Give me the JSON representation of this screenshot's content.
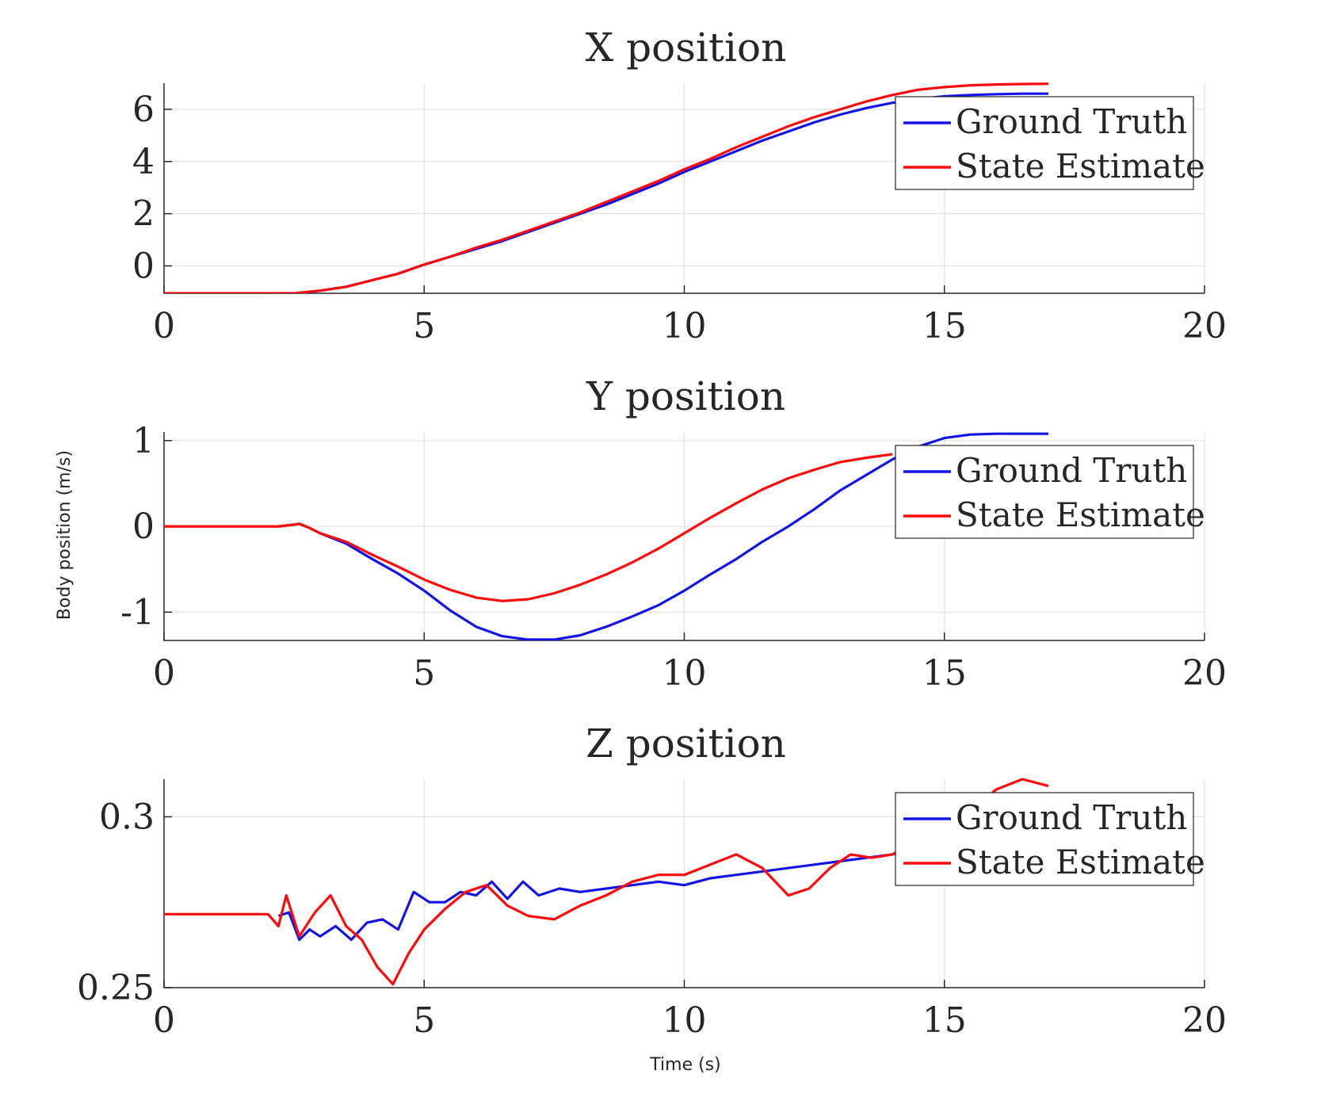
{
  "figure": {
    "ylabel": "Body position (m/s)",
    "xlabel": "Time (s)"
  },
  "colors": {
    "ground_truth": "#1414e6",
    "state_estimate": "#ff0a0a"
  },
  "chart_data": [
    {
      "type": "line",
      "title": "X position",
      "xlim": [
        0,
        20
      ],
      "ylim": [
        -1.05,
        7
      ],
      "xticks": [
        0,
        5,
        10,
        15,
        20
      ],
      "yticks": [
        0,
        2,
        4,
        6
      ],
      "ytick_labels": [
        "0",
        "2",
        "4",
        "6"
      ],
      "grid": true,
      "legend_position": "top-right",
      "series": [
        {
          "name": "Ground Truth",
          "color": "#1414e6",
          "x": [
            2.2,
            2.6,
            3.0,
            3.5,
            4.0,
            4.5,
            5.0,
            5.5,
            6.0,
            6.5,
            7.0,
            7.5,
            8.0,
            8.5,
            9.0,
            9.5,
            10.0,
            10.5,
            11.0,
            11.5,
            12.0,
            12.5,
            13.0,
            13.5,
            14.0,
            14.5,
            15.0,
            15.5,
            16.0,
            16.5,
            17.0
          ],
          "y": [
            -1.05,
            -1.05,
            -0.95,
            -0.8,
            -0.55,
            -0.3,
            0.05,
            0.35,
            0.65,
            0.95,
            1.3,
            1.65,
            2.0,
            2.35,
            2.75,
            3.15,
            3.6,
            4.0,
            4.4,
            4.8,
            5.15,
            5.5,
            5.8,
            6.05,
            6.25,
            6.4,
            6.5,
            6.55,
            6.58,
            6.6,
            6.6
          ]
        },
        {
          "name": "State Estimate",
          "color": "#ff0a0a",
          "x": [
            0,
            0.5,
            1.0,
            1.5,
            2.0,
            2.5,
            3.0,
            3.5,
            4.0,
            4.5,
            5.0,
            5.5,
            6.0,
            6.5,
            7.0,
            7.5,
            8.0,
            8.5,
            9.0,
            9.5,
            10.0,
            10.5,
            11.0,
            11.5,
            12.0,
            12.5,
            13.0,
            13.5,
            14.0,
            14.5,
            15.0,
            15.5,
            16.0,
            16.5,
            17.0
          ],
          "y": [
            -1.05,
            -1.05,
            -1.05,
            -1.05,
            -1.05,
            -1.05,
            -0.95,
            -0.8,
            -0.55,
            -0.3,
            0.05,
            0.35,
            0.7,
            1.0,
            1.35,
            1.7,
            2.05,
            2.45,
            2.85,
            3.25,
            3.7,
            4.1,
            4.55,
            4.95,
            5.35,
            5.7,
            6.0,
            6.3,
            6.55,
            6.75,
            6.85,
            6.92,
            6.95,
            6.97,
            6.98
          ]
        }
      ]
    },
    {
      "type": "line",
      "title": "Y position",
      "xlim": [
        0,
        20
      ],
      "ylim": [
        -1.33,
        1.1
      ],
      "xticks": [
        0,
        5,
        10,
        15,
        20
      ],
      "yticks": [
        -1,
        0,
        1
      ],
      "ytick_labels": [
        "-1",
        "0",
        "1"
      ],
      "grid": true,
      "legend_position": "top-right",
      "series": [
        {
          "name": "Ground Truth",
          "color": "#1414e6",
          "x": [
            2.2,
            2.5,
            2.6,
            2.8,
            3.0,
            3.5,
            4.0,
            4.5,
            5.0,
            5.5,
            6.0,
            6.5,
            7.0,
            7.5,
            8.0,
            8.5,
            9.0,
            9.5,
            10.0,
            10.5,
            11.0,
            11.5,
            12.0,
            12.5,
            13.0,
            13.5,
            14.0,
            14.5,
            15.0,
            15.5,
            16.0,
            16.5,
            17.0
          ],
          "y": [
            0.0,
            0.02,
            0.03,
            -0.02,
            -0.08,
            -0.2,
            -0.38,
            -0.55,
            -0.75,
            -0.98,
            -1.17,
            -1.28,
            -1.32,
            -1.32,
            -1.27,
            -1.17,
            -1.05,
            -0.92,
            -0.75,
            -0.56,
            -0.38,
            -0.18,
            0.0,
            0.2,
            0.42,
            0.6,
            0.78,
            0.93,
            1.03,
            1.07,
            1.08,
            1.08,
            1.08
          ]
        },
        {
          "name": "State Estimate",
          "color": "#ff0a0a",
          "x": [
            0,
            0.5,
            1.0,
            1.5,
            2.0,
            2.2,
            2.5,
            2.6,
            2.8,
            3.0,
            3.5,
            4.0,
            4.5,
            5.0,
            5.5,
            6.0,
            6.5,
            7.0,
            7.5,
            8.0,
            8.5,
            9.0,
            9.5,
            10.0,
            10.5,
            11.0,
            11.5,
            12.0,
            12.5,
            13.0,
            13.5,
            14.0
          ],
          "y": [
            0.0,
            0.0,
            0.0,
            0.0,
            0.0,
            0.0,
            0.02,
            0.03,
            -0.02,
            -0.08,
            -0.18,
            -0.33,
            -0.47,
            -0.62,
            -0.74,
            -0.83,
            -0.87,
            -0.85,
            -0.78,
            -0.68,
            -0.56,
            -0.42,
            -0.26,
            -0.08,
            0.1,
            0.27,
            0.43,
            0.56,
            0.66,
            0.75,
            0.8,
            0.84
          ]
        }
      ]
    },
    {
      "type": "line",
      "title": "Z position",
      "xlim": [
        0,
        20
      ],
      "ylim": [
        0.25,
        0.311
      ],
      "xticks": [
        0,
        5,
        10,
        15,
        20
      ],
      "yticks": [
        0.25,
        0.3
      ],
      "ytick_labels": [
        "0.25",
        "0.3"
      ],
      "grid": true,
      "legend_position": "top-right",
      "series": [
        {
          "name": "Ground Truth",
          "color": "#1414e6",
          "x": [
            2.2,
            2.4,
            2.6,
            2.8,
            3.0,
            3.3,
            3.6,
            3.9,
            4.2,
            4.5,
            4.8,
            5.1,
            5.4,
            5.7,
            6.0,
            6.3,
            6.6,
            6.9,
            7.2,
            7.6,
            8.0,
            8.5,
            9.0,
            9.5,
            10.0,
            10.5,
            11.0,
            11.5,
            12.0,
            12.5,
            13.0,
            13.5,
            14.0,
            14.5,
            15.0,
            15.5,
            16.0
          ],
          "y": [
            0.271,
            0.272,
            0.264,
            0.267,
            0.265,
            0.268,
            0.264,
            0.269,
            0.27,
            0.267,
            0.278,
            0.275,
            0.275,
            0.278,
            0.277,
            0.281,
            0.276,
            0.281,
            0.277,
            0.279,
            0.278,
            0.279,
            0.28,
            0.281,
            0.28,
            0.282,
            0.283,
            0.284,
            0.285,
            0.286,
            0.287,
            0.288,
            0.289,
            0.291,
            0.292,
            0.293,
            0.294
          ]
        },
        {
          "name": "State Estimate",
          "color": "#ff0a0a",
          "x": [
            0,
            0.5,
            1.0,
            1.5,
            2.0,
            2.2,
            2.35,
            2.6,
            2.9,
            3.2,
            3.5,
            3.8,
            4.1,
            4.4,
            4.7,
            5.0,
            5.4,
            5.8,
            6.2,
            6.6,
            7.0,
            7.5,
            8.0,
            8.5,
            9.0,
            9.5,
            10.0,
            10.5,
            11.0,
            11.5,
            12.0,
            12.4,
            12.8,
            13.2,
            13.6,
            14.0,
            14.5,
            15.0,
            15.5,
            16.0,
            16.5,
            17.0
          ],
          "y": [
            0.2715,
            0.2715,
            0.2715,
            0.2715,
            0.2715,
            0.268,
            0.277,
            0.265,
            0.272,
            0.277,
            0.268,
            0.264,
            0.256,
            0.251,
            0.26,
            0.267,
            0.273,
            0.278,
            0.28,
            0.274,
            0.271,
            0.27,
            0.274,
            0.277,
            0.281,
            0.283,
            0.283,
            0.286,
            0.289,
            0.285,
            0.277,
            0.279,
            0.285,
            0.289,
            0.288,
            0.289,
            0.293,
            0.297,
            0.302,
            0.308,
            0.311,
            0.309
          ]
        }
      ]
    }
  ]
}
